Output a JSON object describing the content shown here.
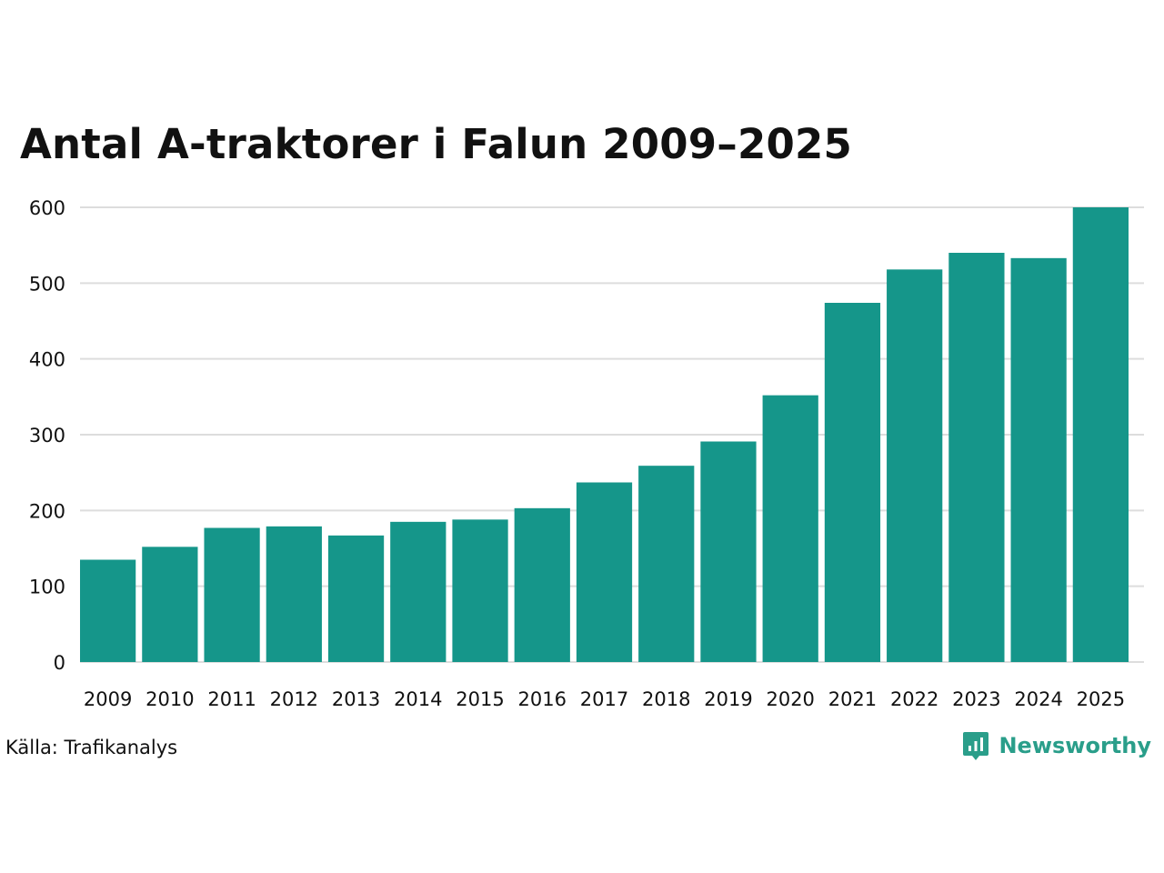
{
  "colors": {
    "bar": "#15968a",
    "grid": "#dddddd",
    "brand": "#2a9e8a"
  },
  "chart_data": {
    "type": "bar",
    "title": "Antal A-traktorer i Falun 2009–2025",
    "xlabel": "",
    "ylabel": "",
    "ylim": [
      0,
      600
    ],
    "yticks": [
      0,
      100,
      200,
      300,
      400,
      500,
      600
    ],
    "grid": true,
    "categories": [
      "2009",
      "2010",
      "2011",
      "2012",
      "2013",
      "2014",
      "2015",
      "2016",
      "2017",
      "2018",
      "2019",
      "2020",
      "2021",
      "2022",
      "2023",
      "2024",
      "2025"
    ],
    "values": [
      135,
      152,
      177,
      179,
      167,
      185,
      188,
      203,
      237,
      259,
      291,
      352,
      474,
      518,
      540,
      533,
      600
    ]
  },
  "footer": {
    "source": "Källa: Trafikanalys",
    "brand": "Newsworthy"
  },
  "icons": {
    "brand": "newsworthy-logo-icon"
  }
}
